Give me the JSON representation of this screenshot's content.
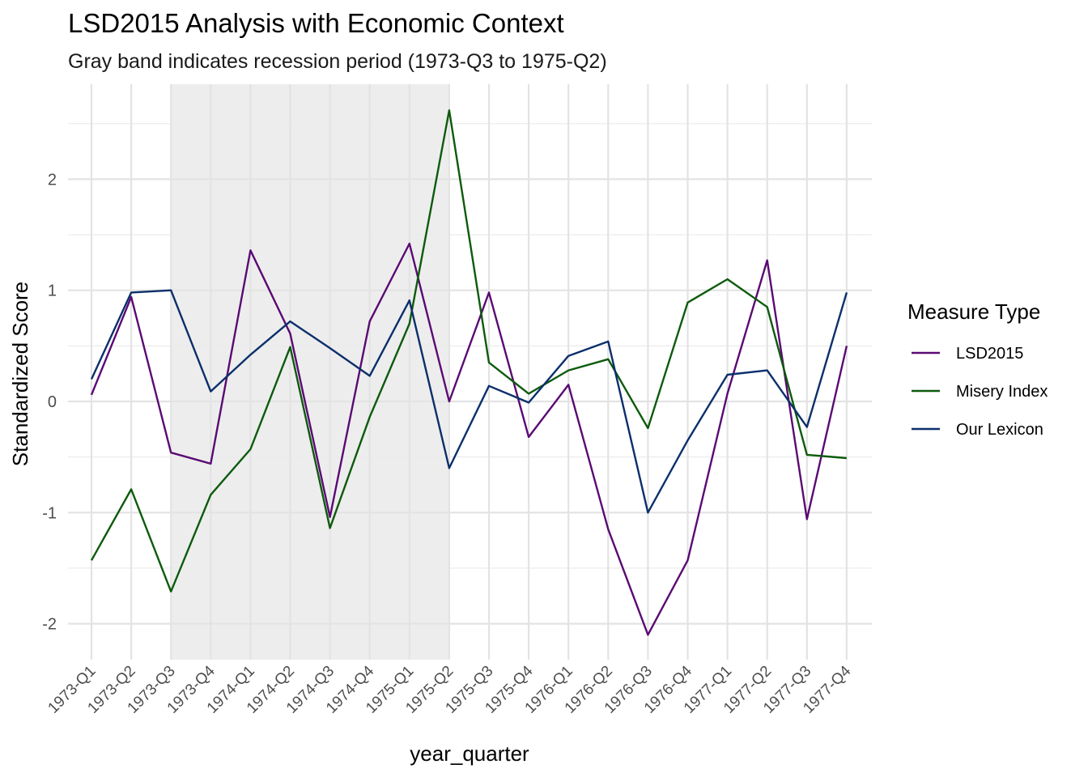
{
  "chart_data": {
    "type": "line",
    "title": "LSD2015 Analysis with Economic Context",
    "subtitle": "Gray band indicates recession period (1973-Q3 to 1975-Q2)",
    "xlabel": "year_quarter",
    "ylabel": "Standardized Score",
    "ylim": [
      -2.3,
      2.65
    ],
    "yticks": [
      -2,
      -1,
      0,
      1,
      2
    ],
    "grid": true,
    "legend": {
      "title": "Measure Type",
      "position": "right"
    },
    "recession_band": {
      "start": "1973-Q3",
      "end": "1975-Q2",
      "color": "#ebebeb"
    },
    "categories": [
      "1973-Q1",
      "1973-Q2",
      "1973-Q3",
      "1973-Q4",
      "1974-Q1",
      "1974-Q2",
      "1974-Q3",
      "1974-Q4",
      "1975-Q1",
      "1975-Q2",
      "1975-Q3",
      "1975-Q4",
      "1976-Q1",
      "1976-Q2",
      "1976-Q3",
      "1976-Q4",
      "1977-Q1",
      "1977-Q2",
      "1977-Q3",
      "1977-Q4"
    ],
    "series": [
      {
        "name": "LSD2015",
        "color": "#5a0a73",
        "values": [
          0.06,
          0.94,
          -0.46,
          -0.56,
          1.36,
          0.61,
          -1.04,
          0.72,
          1.42,
          0.0,
          0.98,
          -0.32,
          0.15,
          -1.15,
          -2.1,
          -1.43,
          0.07,
          1.27,
          -1.06,
          0.5
        ]
      },
      {
        "name": "Misery Index",
        "color": "#0d5a0d",
        "values": [
          -1.43,
          -0.79,
          -1.71,
          -0.84,
          -0.43,
          0.49,
          -1.14,
          -0.14,
          0.7,
          2.62,
          0.35,
          0.07,
          0.28,
          0.38,
          -0.24,
          0.89,
          1.1,
          0.85,
          -0.48,
          -0.51
        ]
      },
      {
        "name": "Our Lexicon",
        "color": "#0b2f6b",
        "values": [
          0.2,
          0.98,
          1.0,
          0.09,
          0.42,
          0.72,
          0.48,
          0.23,
          0.91,
          -0.6,
          0.14,
          -0.01,
          0.41,
          0.54,
          -1.0,
          -0.35,
          0.24,
          0.28,
          -0.23,
          0.98
        ]
      }
    ]
  }
}
